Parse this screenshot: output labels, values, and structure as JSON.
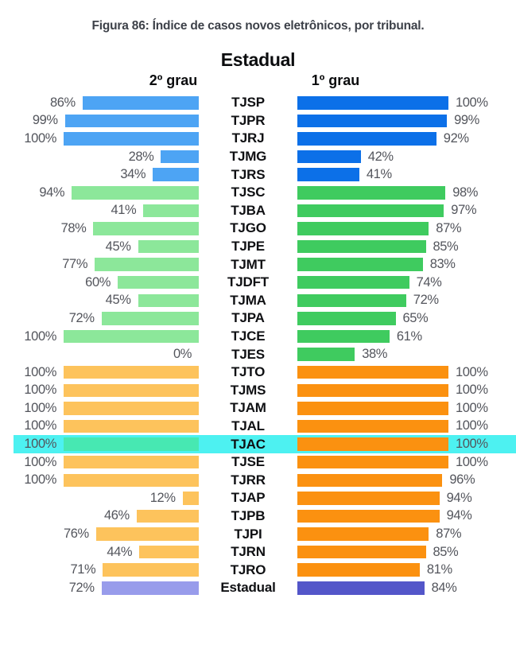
{
  "figure": {
    "title": "Figura 86: Índice de casos novos eletrônicos, por tribunal."
  },
  "chart": {
    "group_title": "Estadual",
    "left_header": "2º grau",
    "right_header": "1º grau"
  },
  "chart_data": {
    "type": "bar",
    "orientation": "horizontal-mirrored",
    "title": "Figura 86: Índice de casos novos eletrônicos, por tribunal.",
    "subtitle": "Estadual",
    "unit": "%",
    "xlim": [
      0,
      100
    ],
    "categories": [
      "TJSP",
      "TJPR",
      "TJRJ",
      "TJMG",
      "TJRS",
      "TJSC",
      "TJBA",
      "TJGO",
      "TJPE",
      "TJMT",
      "TJDFT",
      "TJMA",
      "TJPA",
      "TJCE",
      "TJES",
      "TJTO",
      "TJMS",
      "TJAM",
      "TJAL",
      "TJAC",
      "TJSE",
      "TJRR",
      "TJAP",
      "TJPB",
      "TJPI",
      "TJRN",
      "TJRO",
      "Estadual"
    ],
    "series": [
      {
        "name": "2º grau",
        "values": [
          86,
          99,
          100,
          28,
          34,
          94,
          41,
          78,
          45,
          77,
          60,
          45,
          72,
          100,
          0,
          100,
          100,
          100,
          100,
          100,
          100,
          100,
          12,
          46,
          76,
          44,
          71,
          72
        ]
      },
      {
        "name": "1º grau",
        "values": [
          100,
          99,
          92,
          42,
          41,
          98,
          97,
          87,
          85,
          83,
          74,
          72,
          65,
          61,
          38,
          100,
          100,
          100,
          100,
          100,
          100,
          96,
          94,
          94,
          87,
          85,
          81,
          84
        ]
      }
    ],
    "highlight": "TJAC",
    "colors": {
      "blue_left": "#4da4f4",
      "blue_right": "#0c70e8",
      "green_left": "#8ce79a",
      "green_right": "#3fcb5f",
      "orange_left": "#fdc35c",
      "orange_right": "#fb9110",
      "purple_left": "#989ceb",
      "purple_right": "#5356c9",
      "highlight_band": "#4df1f1",
      "highlight_left_bar": "#47e8b2"
    }
  },
  "rows": [
    {
      "label": "TJSP",
      "left": "86%",
      "right": "100%",
      "left_pct": 86,
      "right_pct": 100,
      "group": "blue",
      "highlighted": false
    },
    {
      "label": "TJPR",
      "left": "99%",
      "right": "99%",
      "left_pct": 99,
      "right_pct": 99,
      "group": "blue",
      "highlighted": false
    },
    {
      "label": "TJRJ",
      "left": "100%",
      "right": "92%",
      "left_pct": 100,
      "right_pct": 92,
      "group": "blue",
      "highlighted": false
    },
    {
      "label": "TJMG",
      "left": "28%",
      "right": "42%",
      "left_pct": 28,
      "right_pct": 42,
      "group": "blue",
      "highlighted": false
    },
    {
      "label": "TJRS",
      "left": "34%",
      "right": "41%",
      "left_pct": 34,
      "right_pct": 41,
      "group": "blue",
      "highlighted": false
    },
    {
      "label": "TJSC",
      "left": "94%",
      "right": "98%",
      "left_pct": 94,
      "right_pct": 98,
      "group": "green",
      "highlighted": false
    },
    {
      "label": "TJBA",
      "left": "41%",
      "right": "97%",
      "left_pct": 41,
      "right_pct": 97,
      "group": "green",
      "highlighted": false
    },
    {
      "label": "TJGO",
      "left": "78%",
      "right": "87%",
      "left_pct": 78,
      "right_pct": 87,
      "group": "green",
      "highlighted": false
    },
    {
      "label": "TJPE",
      "left": "45%",
      "right": "85%",
      "left_pct": 45,
      "right_pct": 85,
      "group": "green",
      "highlighted": false
    },
    {
      "label": "TJMT",
      "left": "77%",
      "right": "83%",
      "left_pct": 77,
      "right_pct": 83,
      "group": "green",
      "highlighted": false
    },
    {
      "label": "TJDFT",
      "left": "60%",
      "right": "74%",
      "left_pct": 60,
      "right_pct": 74,
      "group": "green",
      "highlighted": false
    },
    {
      "label": "TJMA",
      "left": "45%",
      "right": "72%",
      "left_pct": 45,
      "right_pct": 72,
      "group": "green",
      "highlighted": false
    },
    {
      "label": "TJPA",
      "left": "72%",
      "right": "65%",
      "left_pct": 72,
      "right_pct": 65,
      "group": "green",
      "highlighted": false
    },
    {
      "label": "TJCE",
      "left": "100%",
      "right": "61%",
      "left_pct": 100,
      "right_pct": 61,
      "group": "green",
      "highlighted": false
    },
    {
      "label": "TJES",
      "left": "0%",
      "right": "38%",
      "left_pct": 0,
      "right_pct": 38,
      "group": "green",
      "highlighted": false
    },
    {
      "label": "TJTO",
      "left": "100%",
      "right": "100%",
      "left_pct": 100,
      "right_pct": 100,
      "group": "orange",
      "highlighted": false
    },
    {
      "label": "TJMS",
      "left": "100%",
      "right": "100%",
      "left_pct": 100,
      "right_pct": 100,
      "group": "orange",
      "highlighted": false
    },
    {
      "label": "TJAM",
      "left": "100%",
      "right": "100%",
      "left_pct": 100,
      "right_pct": 100,
      "group": "orange",
      "highlighted": false
    },
    {
      "label": "TJAL",
      "left": "100%",
      "right": "100%",
      "left_pct": 100,
      "right_pct": 100,
      "group": "orange",
      "highlighted": false
    },
    {
      "label": "TJAC",
      "left": "100%",
      "right": "100%",
      "left_pct": 100,
      "right_pct": 100,
      "group": "orange",
      "highlighted": true
    },
    {
      "label": "TJSE",
      "left": "100%",
      "right": "100%",
      "left_pct": 100,
      "right_pct": 100,
      "group": "orange",
      "highlighted": false
    },
    {
      "label": "TJRR",
      "left": "100%",
      "right": "96%",
      "left_pct": 100,
      "right_pct": 96,
      "group": "orange",
      "highlighted": false
    },
    {
      "label": "TJAP",
      "left": "12%",
      "right": "94%",
      "left_pct": 12,
      "right_pct": 94,
      "group": "orange",
      "highlighted": false
    },
    {
      "label": "TJPB",
      "left": "46%",
      "right": "94%",
      "left_pct": 46,
      "right_pct": 94,
      "group": "orange",
      "highlighted": false
    },
    {
      "label": "TJPI",
      "left": "76%",
      "right": "87%",
      "left_pct": 76,
      "right_pct": 87,
      "group": "orange",
      "highlighted": false
    },
    {
      "label": "TJRN",
      "left": "44%",
      "right": "85%",
      "left_pct": 44,
      "right_pct": 85,
      "group": "orange",
      "highlighted": false
    },
    {
      "label": "TJRO",
      "left": "71%",
      "right": "81%",
      "left_pct": 71,
      "right_pct": 81,
      "group": "orange",
      "highlighted": false
    },
    {
      "label": "Estadual",
      "left": "72%",
      "right": "84%",
      "left_pct": 72,
      "right_pct": 84,
      "group": "purple",
      "highlighted": false
    }
  ]
}
